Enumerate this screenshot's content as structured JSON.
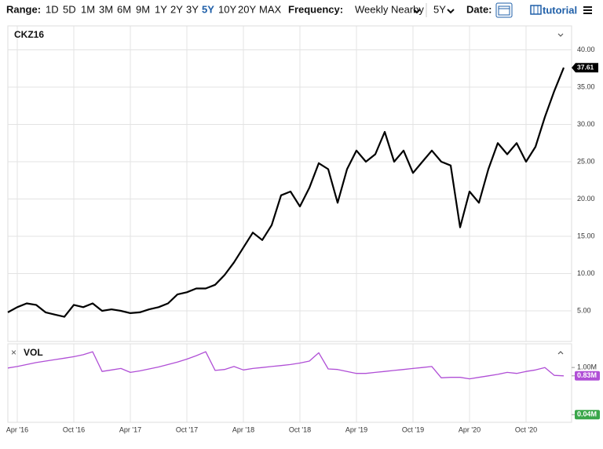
{
  "toolbar": {
    "range_label": "Range:",
    "ranges": [
      "1D",
      "5D",
      "1M",
      "3M",
      "6M",
      "9M",
      "1Y",
      "2Y",
      "3Y",
      "5Y",
      "10Y",
      "20Y",
      "MAX"
    ],
    "frequency_label": "Frequency:",
    "frequency": "Weekly Nearby",
    "period": "5Y",
    "date_label": "Date:",
    "tutorial": "tutorial"
  },
  "chart_data": [
    {
      "type": "line",
      "title": "CKZ16",
      "x": [
        "2016-03",
        "2016-04",
        "2016-05",
        "2016-06",
        "2016-07",
        "2016-08",
        "2016-09",
        "2016-10",
        "2016-11",
        "2016-12",
        "2017-01",
        "2017-02",
        "2017-03",
        "2017-04",
        "2017-05",
        "2017-06",
        "2017-07",
        "2017-08",
        "2017-09",
        "2017-10",
        "2017-11",
        "2017-12",
        "2018-01",
        "2018-02",
        "2018-03",
        "2018-04",
        "2018-05",
        "2018-06",
        "2018-07",
        "2018-08",
        "2018-09",
        "2018-10",
        "2018-11",
        "2018-12",
        "2019-01",
        "2019-02",
        "2019-03",
        "2019-04",
        "2019-05",
        "2019-06",
        "2019-07",
        "2019-08",
        "2019-09",
        "2019-10",
        "2019-11",
        "2019-12",
        "2020-01",
        "2020-02",
        "2020-03",
        "2020-04",
        "2020-05",
        "2020-06",
        "2020-07",
        "2020-08",
        "2020-09",
        "2020-10",
        "2020-11",
        "2020-12",
        "2021-01",
        "2021-02"
      ],
      "series": [
        {
          "color": "#000000",
          "values": [
            4.8,
            5.5,
            6.0,
            5.8,
            4.8,
            4.5,
            4.2,
            5.8,
            5.5,
            6.0,
            5.0,
            5.2,
            5.0,
            4.7,
            4.8,
            5.2,
            5.5,
            6.0,
            7.2,
            7.5,
            8.0,
            8.0,
            8.5,
            9.8,
            11.5,
            13.5,
            15.5,
            14.5,
            16.5,
            20.5,
            21.0,
            19.0,
            21.5,
            24.8,
            24.0,
            19.5,
            24.0,
            26.5,
            25.0,
            26.0,
            29.0,
            25.0,
            26.5,
            23.5,
            25.0,
            26.5,
            25.0,
            24.5,
            16.2,
            21.0,
            19.5,
            24.0,
            27.5,
            26.0,
            27.5,
            25.0,
            27.0,
            31.0,
            34.5,
            37.61
          ]
        }
      ],
      "ylim": [
        0.9,
        43
      ],
      "yticks": [
        {
          "value": 5,
          "label": "5.00"
        },
        {
          "value": 10,
          "label": "10.00"
        },
        {
          "value": 15,
          "label": "15.00"
        },
        {
          "value": 20,
          "label": "20.00"
        },
        {
          "value": 25,
          "label": "25.00"
        },
        {
          "value": 30,
          "label": "30.00"
        },
        {
          "value": 35,
          "label": "35.00"
        },
        {
          "value": 40,
          "label": "40.00"
        }
      ],
      "xticks": [
        {
          "value": "2016-04",
          "label": "Apr '16"
        },
        {
          "value": "2016-10",
          "label": "Oct '16"
        },
        {
          "value": "2017-04",
          "label": "Apr '17"
        },
        {
          "value": "2017-10",
          "label": "Oct '17"
        },
        {
          "value": "2018-04",
          "label": "Apr '18"
        },
        {
          "value": "2018-10",
          "label": "Oct '18"
        },
        {
          "value": "2019-04",
          "label": "Apr '19"
        },
        {
          "value": "2019-10",
          "label": "Oct '19"
        },
        {
          "value": "2020-04",
          "label": "Apr '20"
        },
        {
          "value": "2020-10",
          "label": "Oct '20"
        }
      ],
      "grid": true
    },
    {
      "type": "line",
      "title": "VOL",
      "x": [
        "2016-03",
        "2016-04",
        "2016-05",
        "2016-06",
        "2016-07",
        "2016-08",
        "2016-09",
        "2016-10",
        "2016-11",
        "2016-12",
        "2017-01",
        "2017-02",
        "2017-03",
        "2017-04",
        "2017-05",
        "2017-06",
        "2017-07",
        "2017-08",
        "2017-09",
        "2017-10",
        "2017-11",
        "2017-12",
        "2018-01",
        "2018-02",
        "2018-03",
        "2018-04",
        "2018-05",
        "2018-06",
        "2018-07",
        "2018-08",
        "2018-09",
        "2018-10",
        "2018-11",
        "2018-12",
        "2019-01",
        "2019-02",
        "2019-03",
        "2019-04",
        "2019-05",
        "2019-06",
        "2019-07",
        "2019-08",
        "2019-09",
        "2019-10",
        "2019-11",
        "2019-12",
        "2020-01",
        "2020-02",
        "2020-03",
        "2020-04",
        "2020-05",
        "2020-06",
        "2020-07",
        "2020-08",
        "2020-09",
        "2020-10",
        "2020-11",
        "2020-12",
        "2021-01",
        "2021-02"
      ],
      "series": [
        {
          "color": "#b04fd6",
          "values": [
            0.99,
            1.02,
            1.06,
            1.1,
            1.13,
            1.16,
            1.19,
            1.22,
            1.26,
            1.32,
            0.92,
            0.95,
            0.98,
            0.9,
            0.93,
            0.97,
            1.01,
            1.06,
            1.11,
            1.17,
            1.24,
            1.32,
            0.94,
            0.96,
            1.02,
            0.95,
            0.98,
            1.0,
            1.02,
            1.04,
            1.06,
            1.09,
            1.13,
            1.3,
            0.97,
            0.96,
            0.92,
            0.88,
            0.88,
            0.9,
            0.92,
            0.94,
            0.96,
            0.98,
            1.0,
            1.02,
            0.79,
            0.8,
            0.8,
            0.77,
            0.8,
            0.83,
            0.86,
            0.9,
            0.88,
            0.92,
            0.95,
            1.0,
            0.84,
            0.83
          ]
        }
      ],
      "ylim": [
        -0.1,
        1.45
      ],
      "yticks": [
        {
          "value": 1,
          "label": "1.00M"
        },
        {
          "value": 0.83,
          "label": "0.83M"
        },
        {
          "value": 0.04,
          "label": "0.04M"
        }
      ],
      "grid": true
    }
  ]
}
